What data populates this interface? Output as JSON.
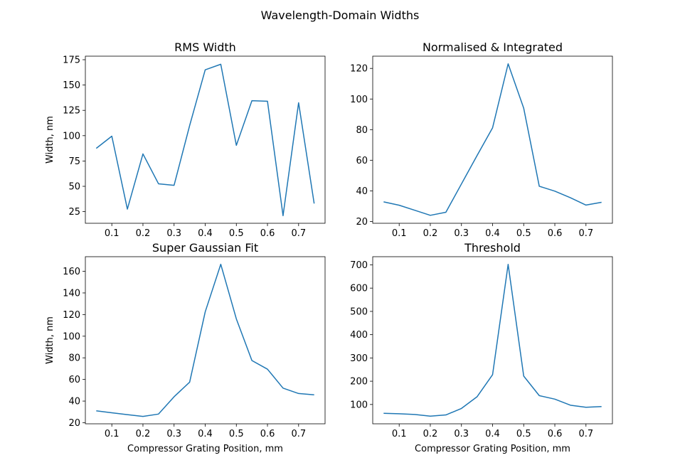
{
  "figure": {
    "suptitle": "Wavelength-Domain Widths"
  },
  "chart_data": [
    {
      "type": "line",
      "title": "RMS Width",
      "xlabel": "",
      "ylabel": "Width, nm",
      "x": [
        0.05,
        0.1,
        0.15,
        0.2,
        0.25,
        0.3,
        0.35,
        0.4,
        0.45,
        0.5,
        0.55,
        0.6,
        0.65,
        0.7,
        0.75
      ],
      "values": [
        87.5,
        99.5,
        27.5,
        82,
        52.5,
        51,
        110,
        165,
        170.5,
        90.5,
        134.5,
        134,
        21,
        132.5,
        33
      ],
      "xlim": [
        0.015,
        0.785
      ],
      "ylim": [
        13.5,
        178.5
      ],
      "xticks": [
        0.1,
        0.2,
        0.3,
        0.4,
        0.5,
        0.6,
        0.7
      ],
      "xtick_labels": [
        "0.1",
        "0.2",
        "0.3",
        "0.4",
        "0.5",
        "0.6",
        "0.7"
      ],
      "yticks": [
        25,
        50,
        75,
        100,
        125,
        150,
        175
      ],
      "ytick_labels": [
        "25",
        "50",
        "75",
        "100",
        "125",
        "150",
        "175"
      ],
      "color": "#1f77b4"
    },
    {
      "type": "line",
      "title": "Normalised & Integrated",
      "xlabel": "",
      "ylabel": "",
      "x": [
        0.05,
        0.1,
        0.15,
        0.2,
        0.25,
        0.3,
        0.35,
        0.4,
        0.45,
        0.5,
        0.55,
        0.6,
        0.65,
        0.7,
        0.75
      ],
      "values": [
        32.8,
        30.6,
        27.3,
        24,
        26,
        44.5,
        63,
        81.2,
        123,
        94,
        43,
        39.8,
        35.5,
        30.7,
        32.5
      ],
      "xlim": [
        0.015,
        0.785
      ],
      "ylim": [
        18.8,
        128
      ],
      "xticks": [
        0.1,
        0.2,
        0.3,
        0.4,
        0.5,
        0.6,
        0.7
      ],
      "xtick_labels": [
        "0.1",
        "0.2",
        "0.3",
        "0.4",
        "0.5",
        "0.6",
        "0.7"
      ],
      "yticks": [
        20,
        40,
        60,
        80,
        100,
        120
      ],
      "ytick_labels": [
        "20",
        "40",
        "60",
        "80",
        "100",
        "120"
      ],
      "color": "#1f77b4"
    },
    {
      "type": "line",
      "title": "Super Gaussian Fit",
      "xlabel": "Compressor Grating Position, mm",
      "ylabel": "Width, nm",
      "x": [
        0.05,
        0.1,
        0.15,
        0.2,
        0.25,
        0.3,
        0.35,
        0.4,
        0.45,
        0.5,
        0.55,
        0.6,
        0.65,
        0.7,
        0.75
      ],
      "values": [
        31,
        29.2,
        27.5,
        25.8,
        28,
        44,
        57.5,
        122.5,
        166.5,
        116,
        77.5,
        69.5,
        52,
        47,
        45.8
      ],
      "xlim": [
        0.015,
        0.785
      ],
      "ylim": [
        19,
        173.5
      ],
      "xticks": [
        0.1,
        0.2,
        0.3,
        0.4,
        0.5,
        0.6,
        0.7
      ],
      "xtick_labels": [
        "0.1",
        "0.2",
        "0.3",
        "0.4",
        "0.5",
        "0.6",
        "0.7"
      ],
      "yticks": [
        20,
        40,
        60,
        80,
        100,
        120,
        140,
        160
      ],
      "ytick_labels": [
        "20",
        "40",
        "60",
        "80",
        "100",
        "120",
        "140",
        "160"
      ],
      "color": "#1f77b4"
    },
    {
      "type": "line",
      "title": "Threshold",
      "xlabel": "Compressor Grating Position, mm",
      "ylabel": "",
      "x": [
        0.05,
        0.1,
        0.15,
        0.2,
        0.25,
        0.3,
        0.35,
        0.4,
        0.45,
        0.5,
        0.55,
        0.6,
        0.65,
        0.7,
        0.75
      ],
      "values": [
        62,
        60,
        57,
        50,
        55,
        83,
        133,
        228,
        702,
        222,
        138,
        123,
        97,
        88,
        91
      ],
      "xlim": [
        0.015,
        0.785
      ],
      "ylim": [
        17,
        735
      ],
      "xticks": [
        0.1,
        0.2,
        0.3,
        0.4,
        0.5,
        0.6,
        0.7
      ],
      "xtick_labels": [
        "0.1",
        "0.2",
        "0.3",
        "0.4",
        "0.5",
        "0.6",
        "0.7"
      ],
      "yticks": [
        100,
        200,
        300,
        400,
        500,
        600,
        700
      ],
      "ytick_labels": [
        "100",
        "200",
        "300",
        "400",
        "500",
        "600",
        "700"
      ],
      "color": "#1f77b4"
    }
  ]
}
